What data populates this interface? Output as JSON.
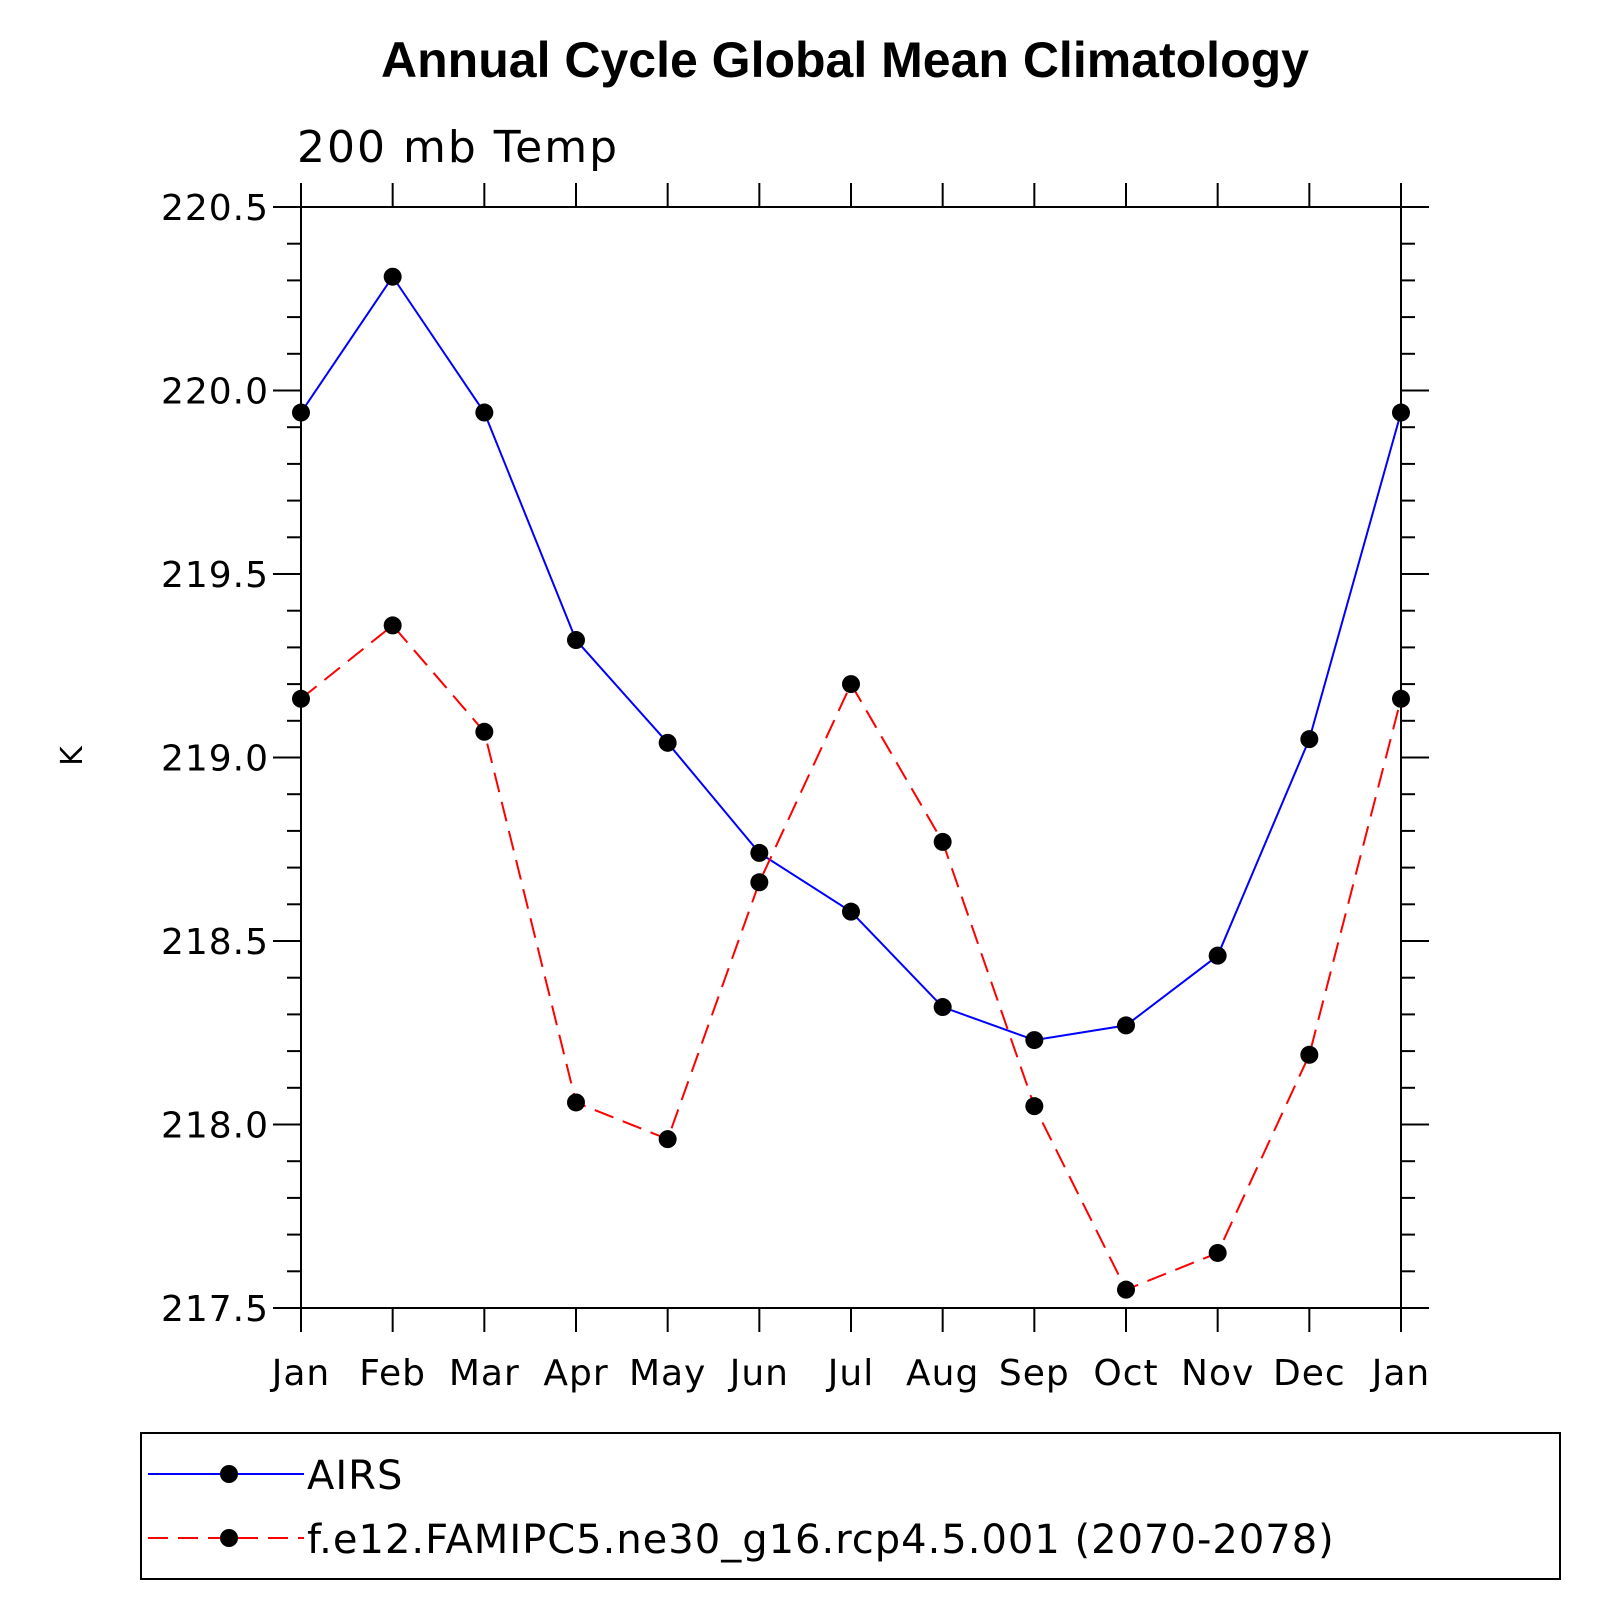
{
  "chart_data": {
    "type": "line",
    "title": "Annual Cycle Global Mean Climatology",
    "subtitle": "200 mb Temp",
    "xlabel": "",
    "ylabel": "K",
    "categories": [
      "Jan",
      "Feb",
      "Mar",
      "Apr",
      "May",
      "Jun",
      "Jul",
      "Aug",
      "Sep",
      "Oct",
      "Nov",
      "Dec",
      "Jan"
    ],
    "ylim": [
      217.5,
      220.5
    ],
    "yticks": [
      "217.5",
      "218.0",
      "218.5",
      "219.0",
      "219.5",
      "220.0",
      "220.5"
    ],
    "grid": false,
    "legend_position": "bottom",
    "series": [
      {
        "name": "AIRS",
        "color": "#0000ff",
        "dash": "solid",
        "values": [
          219.94,
          220.31,
          219.94,
          219.32,
          219.04,
          218.74,
          218.58,
          218.32,
          218.23,
          218.27,
          218.46,
          219.05,
          219.94
        ]
      },
      {
        "name": "f.e12.FAMIPC5.ne30_g16.rcp4.5.001 (2070-2078)",
        "color": "#ff0000",
        "dash": "dashed",
        "values": [
          219.16,
          219.36,
          219.07,
          218.06,
          217.96,
          218.66,
          219.2,
          218.77,
          218.05,
          217.55,
          217.65,
          218.19,
          219.16
        ]
      }
    ]
  }
}
